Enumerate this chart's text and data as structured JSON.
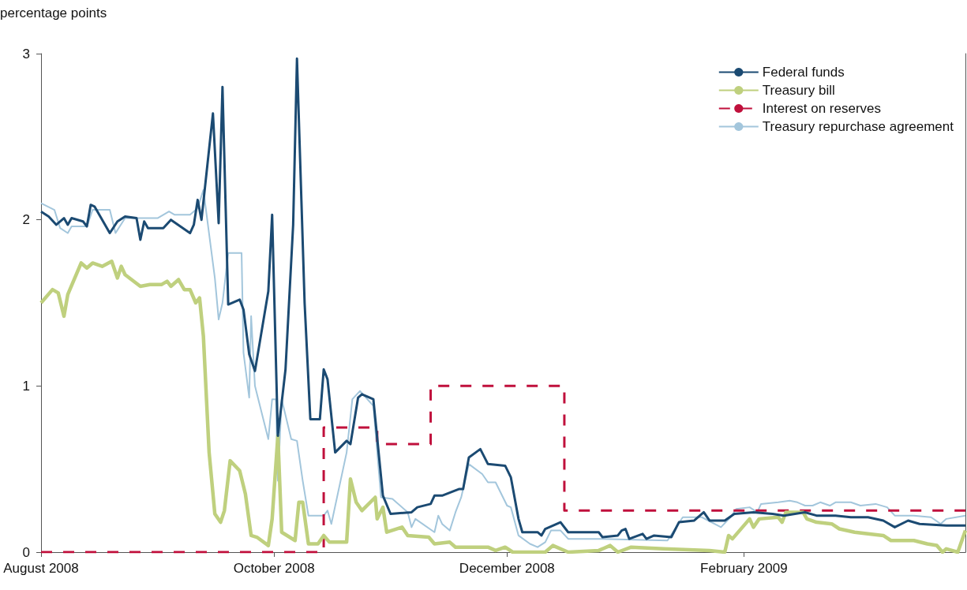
{
  "chart_data": {
    "type": "line",
    "ylabel": "percentage points",
    "marker": "none",
    "line_style": "solid",
    "grid": false,
    "legend": "top right",
    "xlim": [
      "2008-08-01",
      "2009-03-31"
    ],
    "xticks": [
      {
        "value": "2008-08-01",
        "label": "August 2008"
      },
      {
        "value": "2008-10-01",
        "label": "October 2008"
      },
      {
        "value": "2008-12-01",
        "label": "December 2008"
      },
      {
        "value": "2009-02-01",
        "label": "February 2009"
      }
    ],
    "ylim": [
      0,
      3
    ],
    "yticks": [
      0,
      1,
      2,
      3
    ],
    "series": [
      {
        "name": "Federal funds",
        "color": "#1b4a72",
        "x": [
          "2008-08-01",
          "2008-08-03",
          "2008-08-05",
          "2008-08-07",
          "2008-08-08",
          "2008-08-09",
          "2008-08-12",
          "2008-08-13",
          "2008-08-14",
          "2008-08-15",
          "2008-08-19",
          "2008-08-21",
          "2008-08-23",
          "2008-08-26",
          "2008-08-27",
          "2008-08-28",
          "2008-08-29",
          "2008-09-02",
          "2008-09-04",
          "2008-09-09",
          "2008-09-10",
          "2008-09-11",
          "2008-09-12",
          "2008-09-15",
          "2008-09-16T12:00",
          "2008-09-17T12:00",
          "2008-09-19",
          "2008-09-22",
          "2008-09-23",
          "2008-09-24T12:00",
          "2008-09-26",
          "2008-09-29T12:00",
          "2008-09-30T12:00",
          "2008-10-02",
          "2008-10-04",
          "2008-10-06",
          "2008-10-07",
          "2008-10-09",
          "2008-10-10T12:00",
          "2008-10-13",
          "2008-10-14",
          "2008-10-15",
          "2008-10-17",
          "2008-10-20",
          "2008-10-21",
          "2008-10-23",
          "2008-10-24",
          "2008-10-27",
          "2008-10-29T12:00",
          "2008-10-31T12:00",
          "2008-11-06",
          "2008-11-07T12:00",
          "2008-11-11",
          "2008-11-12",
          "2008-11-14",
          "2008-11-18T12:00",
          "2008-11-19T12:00",
          "2008-11-21",
          "2008-11-24",
          "2008-11-26",
          "2008-11-30T12:00",
          "2008-12-02",
          "2008-12-04",
          "2008-12-05",
          "2008-12-09",
          "2008-12-10",
          "2008-12-11",
          "2008-12-15",
          "2008-12-17",
          "2008-12-25",
          "2008-12-26",
          "2008-12-30",
          "2008-12-31",
          "2009-01-01",
          "2009-01-02",
          "2009-01-05T12:00",
          "2009-01-06T12:00",
          "2009-01-08T12:00",
          "2009-01-13",
          "2009-01-15",
          "2009-01-19",
          "2009-01-21T12:00",
          "2009-01-23",
          "2009-01-27",
          "2009-01-29T12:00",
          "2009-02-03T12:00",
          "2009-02-08T12:00",
          "2009-02-11T12:00",
          "2009-02-17",
          "2009-02-20",
          "2009-02-25",
          "2009-03-01",
          "2009-03-05T12:00",
          "2009-03-09T12:00",
          "2009-03-12T12:00",
          "2009-03-16",
          "2009-03-19",
          "2009-03-26",
          "2009-03-31"
        ],
        "values": [
          2.05,
          2.02,
          1.97,
          2.01,
          1.97,
          2.01,
          1.99,
          1.96,
          2.09,
          2.08,
          1.92,
          1.99,
          2.02,
          2.01,
          1.88,
          1.99,
          1.95,
          1.95,
          2.0,
          1.92,
          1.97,
          2.12,
          2.0,
          2.64,
          1.98,
          2.8,
          1.49,
          1.52,
          1.46,
          1.19,
          1.09,
          1.57,
          2.03,
          0.7,
          1.1,
          1.97,
          2.97,
          1.5,
          0.8,
          0.8,
          1.1,
          1.04,
          0.6,
          0.67,
          0.65,
          0.93,
          0.95,
          0.92,
          0.34,
          0.23,
          0.24,
          0.27,
          0.29,
          0.34,
          0.34,
          0.38,
          0.38,
          0.57,
          0.62,
          0.53,
          0.52,
          0.45,
          0.2,
          0.12,
          0.12,
          0.1,
          0.14,
          0.18,
          0.12,
          0.12,
          0.09,
          0.1,
          0.13,
          0.14,
          0.08,
          0.11,
          0.08,
          0.1,
          0.09,
          0.18,
          0.19,
          0.24,
          0.19,
          0.19,
          0.23,
          0.24,
          0.23,
          0.22,
          0.24,
          0.22,
          0.22,
          0.21,
          0.21,
          0.19,
          0.15,
          0.19,
          0.17,
          0.16,
          0.16
        ]
      },
      {
        "name": "Treasury bill",
        "color": "#bfd07e",
        "x": [
          "2008-08-01",
          "2008-08-04",
          "2008-08-05T12:00",
          "2008-08-07",
          "2008-08-08",
          "2008-08-11T12:00",
          "2008-08-13",
          "2008-08-14T12:00",
          "2008-08-17",
          "2008-08-19T12:00",
          "2008-08-21",
          "2008-08-22",
          "2008-08-23",
          "2008-08-27",
          "2008-08-29T12:00",
          "2008-09-01T12:00",
          "2008-09-03",
          "2008-09-04",
          "2008-09-06",
          "2008-09-07T12:00",
          "2008-09-09",
          "2008-09-10T12:00",
          "2008-09-11T12:00",
          "2008-09-12T12:00",
          "2008-09-14",
          "2008-09-15T12:00",
          "2008-09-17",
          "2008-09-18",
          "2008-09-19T12:00",
          "2008-09-22",
          "2008-09-23T12:00",
          "2008-09-25",
          "2008-09-26T12:00",
          "2008-09-29T12:00",
          "2008-09-30T12:00",
          "2008-10-02",
          "2008-10-03",
          "2008-10-06T12:00",
          "2008-10-07T12:00",
          "2008-10-08T12:00",
          "2008-10-10",
          "2008-10-12T12:00",
          "2008-10-14",
          "2008-10-15T12:00",
          "2008-10-20",
          "2008-10-21",
          "2008-10-22T12:00",
          "2008-10-24",
          "2008-10-27T12:00",
          "2008-10-28",
          "2008-10-29T12:00",
          "2008-10-30T12:00",
          "2008-11-03T12:00",
          "2008-11-05",
          "2008-11-10T12:00",
          "2008-11-12",
          "2008-11-16",
          "2008-11-17T12:00",
          "2008-11-26",
          "2008-11-28",
          "2008-11-30T12:00",
          "2008-12-02T12:00",
          "2008-12-11",
          "2008-12-13",
          "2008-12-17",
          "2008-12-25",
          "2008-12-28",
          "2008-12-30",
          "2009-01-02T12:00",
          "2009-01-11",
          "2009-01-23",
          "2009-01-27",
          "2009-01-28",
          "2009-01-29",
          "2009-02-02T12:00",
          "2009-02-03T12:00",
          "2009-02-05",
          "2009-02-10",
          "2009-02-11",
          "2009-02-12",
          "2009-02-16T12:00",
          "2009-02-17T12:00",
          "2009-02-20",
          "2009-02-24",
          "2009-02-26",
          "2009-03-02",
          "2009-03-05T12:00",
          "2009-03-09T12:00",
          "2009-03-11T12:00",
          "2009-03-17T12:00",
          "2009-03-21",
          "2009-03-23T12:00",
          "2009-03-25",
          "2009-03-26",
          "2009-03-29",
          "2009-03-31"
        ],
        "values": [
          1.5,
          1.58,
          1.56,
          1.42,
          1.55,
          1.74,
          1.71,
          1.74,
          1.72,
          1.75,
          1.65,
          1.72,
          1.67,
          1.6,
          1.61,
          1.61,
          1.63,
          1.6,
          1.64,
          1.58,
          1.58,
          1.5,
          1.53,
          1.3,
          0.6,
          0.23,
          0.18,
          0.25,
          0.55,
          0.49,
          0.35,
          0.1,
          0.09,
          0.04,
          0.2,
          0.7,
          0.12,
          0.07,
          0.3,
          0.3,
          0.05,
          0.05,
          0.1,
          0.06,
          0.06,
          0.44,
          0.3,
          0.25,
          0.33,
          0.2,
          0.27,
          0.12,
          0.15,
          0.1,
          0.09,
          0.05,
          0.06,
          0.03,
          0.03,
          0.01,
          0.03,
          0.0,
          0.0,
          0.04,
          0.0,
          0.01,
          0.04,
          0.0,
          0.03,
          0.02,
          0.01,
          0.0,
          0.1,
          0.08,
          0.2,
          0.15,
          0.2,
          0.21,
          0.18,
          0.24,
          0.24,
          0.2,
          0.18,
          0.17,
          0.14,
          0.12,
          0.11,
          0.1,
          0.07,
          0.07,
          0.05,
          0.04,
          0.0,
          0.02,
          0.0,
          0.13
        ]
      },
      {
        "name": "Interest on reserves",
        "type": "step",
        "line_style": "dashed",
        "color": "#c0103c",
        "x": [
          "2008-08-01",
          "2008-10-14",
          "2008-10-28",
          "2008-11-11",
          "2008-12-16",
          "2009-03-31"
        ],
        "values": [
          0,
          0.75,
          0.65,
          1.0,
          0.25,
          0.25
        ]
      },
      {
        "name": "Treasury repurchase agreement",
        "color": "#a3c6dc",
        "x": [
          "2008-08-01",
          "2008-08-04T12:00",
          "2008-08-06",
          "2008-08-08",
          "2008-08-09",
          "2008-08-13",
          "2008-08-14T12:00",
          "2008-08-19",
          "2008-08-20T12:00",
          "2008-08-23",
          "2008-08-31T12:00",
          "2008-09-03T12:00",
          "2008-09-05",
          "2008-09-09",
          "2008-09-11",
          "2008-09-12T12:00",
          "2008-09-15T12:00",
          "2008-09-16T12:00",
          "2008-09-17T12:00",
          "2008-09-19",
          "2008-09-22T12:00",
          "2008-09-23",
          "2008-09-24T12:00",
          "2008-09-25",
          "2008-09-26",
          "2008-09-29T12:00",
          "2008-09-30T12:00",
          "2008-10-01T12:00",
          "2008-10-02",
          "2008-10-03",
          "2008-10-05T12:00",
          "2008-10-07",
          "2008-10-08T12:00",
          "2008-10-10",
          "2008-10-14",
          "2008-10-15",
          "2008-10-16",
          "2008-10-20",
          "2008-10-21T12:00",
          "2008-10-23T12:00",
          "2008-10-27",
          "2008-10-29",
          "2008-11-01",
          "2008-11-05",
          "2008-11-06",
          "2008-11-07",
          "2008-11-12",
          "2008-11-13",
          "2008-11-14",
          "2008-11-16",
          "2008-11-17T12:00",
          "2008-11-19",
          "2008-11-21",
          "2008-11-24T12:00",
          "2008-11-26",
          "2008-11-28",
          "2008-12-01",
          "2008-12-02",
          "2008-12-04",
          "2008-12-07",
          "2008-12-09",
          "2008-12-11",
          "2008-12-12T12:00",
          "2008-12-15",
          "2008-12-17",
          "2008-12-25",
          "2009-01-12",
          "2009-01-16",
          "2009-01-21",
          "2009-01-26",
          "2009-01-28T12:00",
          "2009-01-30",
          "2009-02-02T12:00",
          "2009-02-04T12:00",
          "2009-02-05T12:00",
          "2009-02-10",
          "2009-02-13",
          "2009-02-15",
          "2009-02-17",
          "2009-02-19",
          "2009-02-21",
          "2009-02-23T12:00",
          "2009-02-25",
          "2009-03-01",
          "2009-03-03T12:00",
          "2009-03-07T12:00",
          "2009-03-10T12:00",
          "2009-03-12T12:00",
          "2009-03-17T12:00",
          "2009-03-22",
          "2009-03-24T12:00",
          "2009-03-26",
          "2009-03-31"
        ],
        "values": [
          2.1,
          2.06,
          1.95,
          1.92,
          1.96,
          1.96,
          2.06,
          2.06,
          1.92,
          2.01,
          2.01,
          2.05,
          2.03,
          2.03,
          2.07,
          2.18,
          1.65,
          1.4,
          1.5,
          1.8,
          1.8,
          1.2,
          0.93,
          1.42,
          1.0,
          0.68,
          0.92,
          0.92,
          0.43,
          0.92,
          0.68,
          0.67,
          0.43,
          0.22,
          0.22,
          0.25,
          0.17,
          0.6,
          0.92,
          0.97,
          0.88,
          0.33,
          0.32,
          0.24,
          0.15,
          0.2,
          0.12,
          0.22,
          0.17,
          0.13,
          0.24,
          0.33,
          0.53,
          0.47,
          0.42,
          0.42,
          0.28,
          0.27,
          0.1,
          0.05,
          0.03,
          0.06,
          0.13,
          0.13,
          0.08,
          0.08,
          0.07,
          0.21,
          0.21,
          0.15,
          0.21,
          0.26,
          0.27,
          0.24,
          0.29,
          0.3,
          0.31,
          0.3,
          0.28,
          0.28,
          0.3,
          0.28,
          0.3,
          0.3,
          0.28,
          0.29,
          0.27,
          0.22,
          0.22,
          0.21,
          0.17,
          0.2,
          0.22
        ]
      }
    ]
  }
}
